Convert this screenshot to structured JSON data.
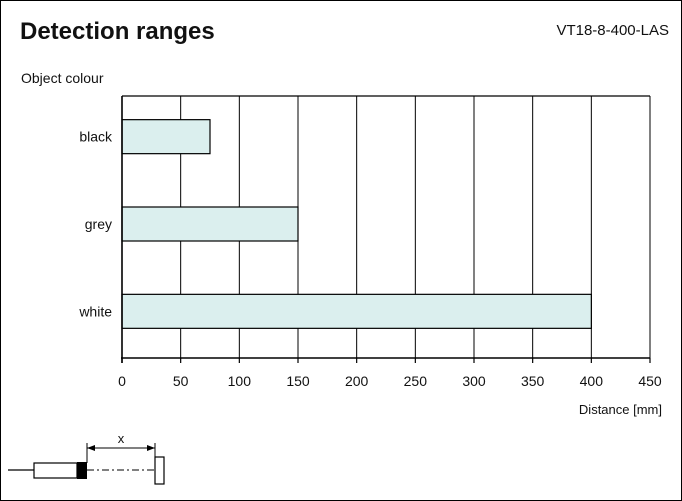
{
  "header": {
    "title": "Detection ranges",
    "model": "VT18-8-400-LAS"
  },
  "chart_data": {
    "type": "bar",
    "orientation": "horizontal",
    "title": "Detection ranges",
    "ylabel": "Object colour",
    "xlabel": "Distance [mm]",
    "categories": [
      "black",
      "grey",
      "white"
    ],
    "values": [
      75,
      150,
      400
    ],
    "xlim": [
      0,
      450
    ],
    "xticks": [
      0,
      50,
      100,
      150,
      200,
      250,
      300,
      350,
      400,
      450
    ],
    "grid": "vertical",
    "bar_color": "#dbefee",
    "legend": "none"
  },
  "diagram": {
    "distance_label": "x"
  }
}
